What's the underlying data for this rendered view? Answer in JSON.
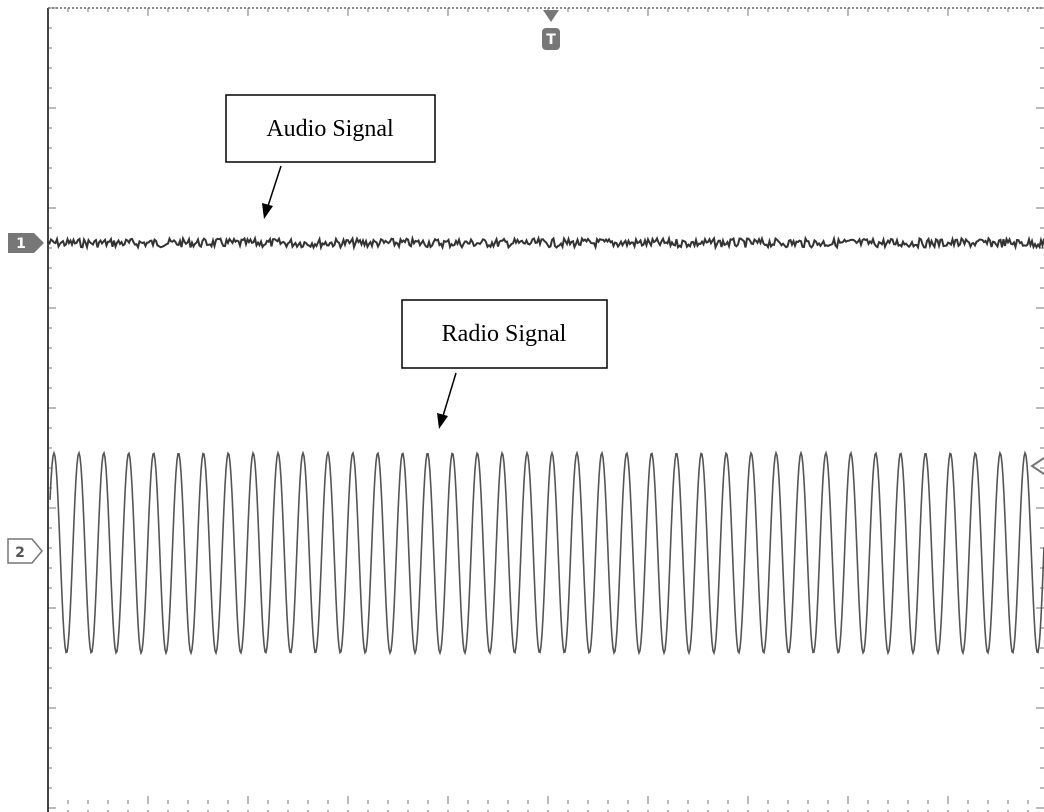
{
  "markers": {
    "trigger": "T",
    "channel_1": "1",
    "channel_2": "2"
  },
  "annotations": [
    {
      "label": "Audio Signal"
    },
    {
      "label": "Radio Signal"
    }
  ]
}
